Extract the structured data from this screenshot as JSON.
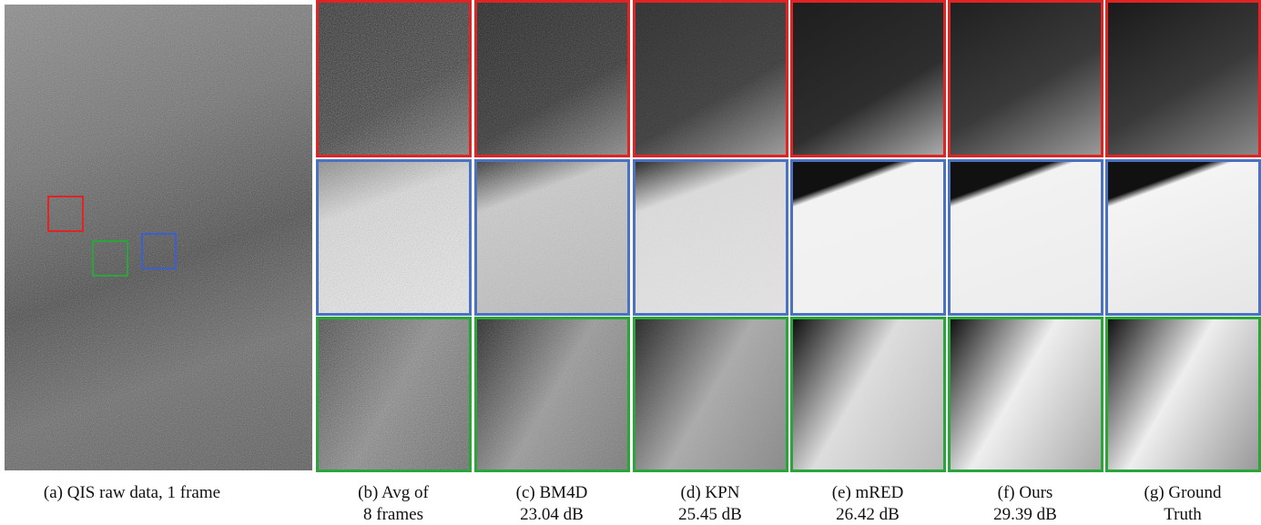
{
  "panels": [
    {
      "caption": [
        "(a) QIS raw data, 1 frame"
      ]
    },
    {
      "caption": [
        "(b) Avg of",
        "8 frames"
      ]
    },
    {
      "caption": [
        "(c) BM4D",
        "23.04 dB"
      ]
    },
    {
      "caption": [
        "(d) KPN",
        "25.45 dB"
      ]
    },
    {
      "caption": [
        "(e) mRED",
        "26.42 dB"
      ]
    },
    {
      "caption": [
        "(f) Ours",
        "29.39 dB"
      ]
    },
    {
      "caption": [
        "(g) Ground",
        "Truth"
      ]
    }
  ]
}
